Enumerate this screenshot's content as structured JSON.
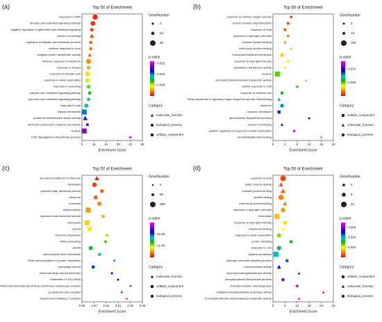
{
  "chart_data": [
    {
      "type": "dot",
      "label": "(a)",
      "title": "Top 50 of  Enrichment",
      "xlabel": "Enrichment Score",
      "xlim": [
        0,
        55
      ],
      "xticks": [
        0,
        11,
        22,
        33,
        44,
        55
      ],
      "terms": [
        "response to chitin",
        "abscisic acid-activated signaling pathway",
        "negative regulation of gibberellic acid-mediated signaling",
        "calcium ion binding",
        "regulation of salicylic acid metabolic process",
        "defense response to virus",
        "ubiquitin protein transferase activity",
        "defense response to bacterium",
        "response to fungus",
        "response to abscisic acid",
        "response to water deprivation",
        "response to wounding",
        "salicylic acid mediated signaling pathway",
        "jasmonic acid mediated signaling pathway",
        "response to cold",
        "plasma membrane",
        "protein serine/threonine kinase activity",
        "anchored component of plasma membrane",
        "nucleus",
        "CDP-diacylglycerol biosynthetic process"
      ],
      "scores": [
        12,
        10,
        9,
        9,
        8,
        8,
        7,
        6,
        6,
        5,
        5,
        6,
        7,
        6,
        4,
        2,
        3,
        5,
        2,
        44
      ],
      "p_values": [
        0.0005,
        0.0008,
        0.001,
        0.0012,
        0.0015,
        0.002,
        0.002,
        0.0025,
        0.003,
        0.004,
        0.005,
        0.006,
        0.007,
        0.008,
        0.009,
        0.01,
        0.011,
        0.013,
        0.014,
        0.016
      ],
      "gene_numbers": [
        40,
        30,
        12,
        25,
        8,
        10,
        20,
        35,
        15,
        30,
        25,
        18,
        10,
        8,
        20,
        50,
        30,
        6,
        50,
        2
      ],
      "categories": [
        "biological_process",
        "biological_process",
        "biological_process",
        "molecular_function",
        "biological_process",
        "biological_process",
        "molecular_function",
        "biological_process",
        "biological_process",
        "biological_process",
        "biological_process",
        "biological_process",
        "biological_process",
        "biological_process",
        "biological_process",
        "cellular_component",
        "molecular_function",
        "cellular_component",
        "cellular_component",
        "biological_process"
      ],
      "size_legend": {
        "title": "GeneNumber",
        "values": [
          2,
          10,
          50
        ]
      },
      "color_legend": {
        "title": "p-value",
        "lim": [
          0,
          0.016
        ],
        "ticks": [
          {
            "value": 0.005,
            "label": "0.005"
          },
          {
            "value": 0.01,
            "label": "0.010"
          },
          {
            "value": 0.015,
            "label": "0.015"
          }
        ]
      },
      "category_legend": {
        "title": "Category",
        "items": [
          "molecular_function",
          "biological_process",
          "cellular_component"
        ],
        "shapes": [
          "triangle",
          "circle",
          "square"
        ]
      },
      "colormap": [
        "#ff0000",
        "#ff8000",
        "#ffff00",
        "#00c000",
        "#00c0c0",
        "#0000ff",
        "#8000c0",
        "#ff00ff"
      ]
    },
    {
      "type": "dot",
      "label": "(b)",
      "title": "Top 50 of  Enrichment",
      "xlabel": "Enrichment Score",
      "xlim": [
        0,
        20
      ],
      "xticks": [
        0,
        4,
        8,
        12,
        16,
        20
      ],
      "terms": [
        "response to reactive oxygen species",
        "protein complex oligomerization",
        "response to heat",
        "response to hydrogen peroxide",
        "unfolded protein binding",
        "heat shock protein binding",
        "chloroplast thylakoid membrane",
        "response to high light intensity",
        "glutathione transferase activity",
        "nucleus",
        "xenobiotic transmembrane transporter activity",
        "cellular response to cold",
        "response to cadmium ion",
        "RNA polymerase II regulatory region sequence-specific DNA binding",
        "ribosome",
        "vacuolar membrane",
        "glucosinolate biosynthetic process",
        "calcium ion binding",
        "positive regulation of response to water deprivation",
        "phosphatidylinositol binding"
      ],
      "scores": [
        6,
        5,
        4,
        5,
        4,
        6,
        3,
        5,
        4,
        1.5,
        11,
        8,
        3,
        2,
        3,
        2,
        12,
        3,
        7,
        16
      ],
      "p_values": [
        0.001,
        0.001,
        0.0015,
        0.002,
        0.002,
        0.0025,
        0.003,
        0.0035,
        0.004,
        0.005,
        0.005,
        0.006,
        0.006,
        0.007,
        0.008,
        0.009,
        0.01,
        0.011,
        0.012,
        0.013
      ],
      "gene_numbers": [
        10,
        15,
        20,
        12,
        18,
        8,
        30,
        10,
        8,
        104,
        3,
        4,
        20,
        25,
        30,
        25,
        3,
        15,
        4,
        3
      ],
      "categories": [
        "biological_process",
        "biological_process",
        "biological_process",
        "biological_process",
        "molecular_function",
        "molecular_function",
        "cellular_component",
        "biological_process",
        "molecular_function",
        "cellular_component",
        "molecular_function",
        "biological_process",
        "biological_process",
        "molecular_function",
        "cellular_component",
        "cellular_component",
        "biological_process",
        "molecular_function",
        "biological_process",
        "molecular_function"
      ],
      "size_legend": {
        "title": "GeneNumber",
        "values": [
          3,
          13,
          104
        ]
      },
      "color_legend": {
        "title": "p-value",
        "lim": [
          0,
          0.013
        ],
        "ticks": [
          {
            "value": 0.005,
            "label": "0.005"
          },
          {
            "value": 0.01,
            "label": "0.010"
          }
        ]
      },
      "category_legend": {
        "title": "Category",
        "items": [
          "cellular_component",
          "molecular_function",
          "biological_process"
        ],
        "shapes": [
          "square",
          "triangle",
          "circle"
        ]
      },
      "colormap": [
        "#ff0000",
        "#ff8000",
        "#ffff00",
        "#00c000",
        "#00c0c0",
        "#0000ff",
        "#8000c0",
        "#ff00ff"
      ]
    },
    {
      "type": "dot",
      "label": "(c)",
      "title": "Top 50 of  Enrichment",
      "xlabel": "Enrichment Score",
      "xlim": [
        0.6,
        5.45
      ],
      "xticks": [
        {
          "value": 0.6,
          "label": "0.60"
        },
        1.57,
        2.54,
        3.51,
        4.48,
        5.45
      ],
      "terms": [
        "structural constituent of ribosome",
        "translation",
        "cytosolic large ribosomal subunit",
        "ribosome",
        "nucleolus",
        "mitochondrion",
        "cytosolic small ribosomal subunit",
        "chloroplast",
        "cytosol",
        "ribosome biogenesis",
        "rRNA processing",
        "plastid",
        "mitochondrial inner membrane",
        "tRNA aminoacylation for protein translation",
        "chloroplast stroma",
        "ribosomal large subunit assembly",
        "maturation of SSU-rRNA",
        "TIM23 mitochondrial import inner membrane translocase complex",
        "proteasome core complex",
        "chaperonin-containing T-complex"
      ],
      "scores": [
        1.8,
        1.6,
        2.2,
        1.7,
        2.0,
        1.1,
        2.3,
        1.0,
        1.2,
        2.6,
        2.5,
        1.3,
        2.0,
        3.2,
        1.5,
        3.0,
        3.5,
        4.5,
        3.8,
        4.2
      ],
      "p_values": [
        1e-07,
        2e-07,
        3e-07,
        3e-07,
        4e-07,
        5e-07,
        6e-07,
        7e-07,
        8e-07,
        1e-06,
        1.2e-06,
        1.4e-06,
        1.6e-06,
        1.8e-06,
        2e-06,
        2.2e-06,
        2.4e-06,
        2.6e-06,
        2.8e-06,
        3e-06
      ],
      "gene_numbers": [
        300,
        320,
        150,
        200,
        200,
        560,
        100,
        500,
        400,
        60,
        70,
        200,
        80,
        20,
        120,
        25,
        20,
        6,
        10,
        8
      ],
      "categories": [
        "molecular_function",
        "biological_process",
        "cellular_component",
        "cellular_component",
        "cellular_component",
        "cellular_component",
        "cellular_component",
        "cellular_component",
        "cellular_component",
        "biological_process",
        "biological_process",
        "cellular_component",
        "cellular_component",
        "biological_process",
        "cellular_component",
        "biological_process",
        "biological_process",
        "cellular_component",
        "cellular_component",
        "cellular_component"
      ],
      "size_legend": {
        "title": "GeneNumber",
        "values": [
          5,
          65,
          560
        ]
      },
      "color_legend": {
        "title": "p-value",
        "lim": [
          0,
          3e-06
        ],
        "ticks": [
          {
            "value": 1e-06,
            "label": "1e-06"
          },
          {
            "value": 2e-06,
            "label": "2e-06"
          }
        ]
      },
      "category_legend": {
        "title": "Category",
        "items": [
          "molecular_function",
          "cellular_component",
          "biological_process"
        ],
        "shapes": [
          "triangle",
          "square",
          "circle"
        ]
      },
      "colormap": [
        "#ff0000",
        "#ff8000",
        "#ffff00",
        "#00c000",
        "#00c0c0",
        "#0000ff",
        "#8000c0",
        "#ff00ff"
      ]
    },
    {
      "type": "dot",
      "label": "(d)",
      "title": "Top 50 of  Enrichment",
      "xlabel": "Enrichment Score",
      "xlim": [
        0,
        30
      ],
      "xticks": [
        0,
        6,
        12,
        18,
        24,
        30
      ],
      "terms": [
        "response to heat",
        "water channel activity",
        "unfolded protein binding",
        "protein folding",
        "heat shock protein binding",
        "response to hydrogen peroxide",
        "chloroplast",
        "response to high light intensity",
        "chaperone binding",
        "response to water deprivation",
        "protein refolding",
        "response to cold",
        "plasma membrane",
        "hydrogen peroxide catabolic process",
        "oxidoreductase activity",
        "hydroxycinnamoyltransferase activity",
        "phenylpropanoid biosynthetic process",
        "stomatal complex morphogenesis",
        "methylene-tetrahydrofolate reductase activity",
        "N-methylnicotinate transmembrane transporter activity"
      ],
      "scores": [
        5,
        4,
        5,
        4,
        6,
        5,
        2,
        6,
        5,
        3,
        9,
        3,
        1.5,
        7,
        3,
        13,
        5,
        12,
        25,
        13
      ],
      "p_values": [
        0.0005,
        0.0006,
        0.0008,
        0.001,
        0.001,
        0.0012,
        0.0015,
        0.0018,
        0.002,
        0.0025,
        0.003,
        0.0035,
        0.004,
        0.0045,
        0.005,
        0.0055,
        0.006,
        0.0065,
        0.007,
        0.007
      ],
      "gene_numbers": [
        21,
        10,
        15,
        18,
        10,
        12,
        21,
        8,
        6,
        10,
        4,
        10,
        21,
        4,
        8,
        2,
        4,
        2,
        2,
        2
      ],
      "categories": [
        "biological_process",
        "molecular_function",
        "molecular_function",
        "biological_process",
        "molecular_function",
        "biological_process",
        "cellular_component",
        "biological_process",
        "molecular_function",
        "biological_process",
        "biological_process",
        "biological_process",
        "cellular_component",
        "biological_process",
        "molecular_function",
        "molecular_function",
        "biological_process",
        "biological_process",
        "molecular_function",
        "molecular_function"
      ],
      "size_legend": {
        "title": "GeneNumber",
        "values": [
          2,
          8,
          21
        ]
      },
      "color_legend": {
        "title": "p-value",
        "lim": [
          0,
          0.007
        ],
        "ticks": [
          {
            "value": 0.002,
            "label": "0.002"
          },
          {
            "value": 0.004,
            "label": "0.004"
          },
          {
            "value": 0.006,
            "label": "0.006"
          }
        ]
      },
      "category_legend": {
        "title": "Category",
        "items": [
          "cellular_component",
          "molecular_function",
          "biological_process"
        ],
        "shapes": [
          "square",
          "triangle",
          "circle"
        ]
      },
      "colormap": [
        "#ff0000",
        "#ff8000",
        "#ffff00",
        "#00c000",
        "#00c0c0",
        "#0000ff",
        "#8000c0",
        "#ff00ff"
      ]
    }
  ]
}
